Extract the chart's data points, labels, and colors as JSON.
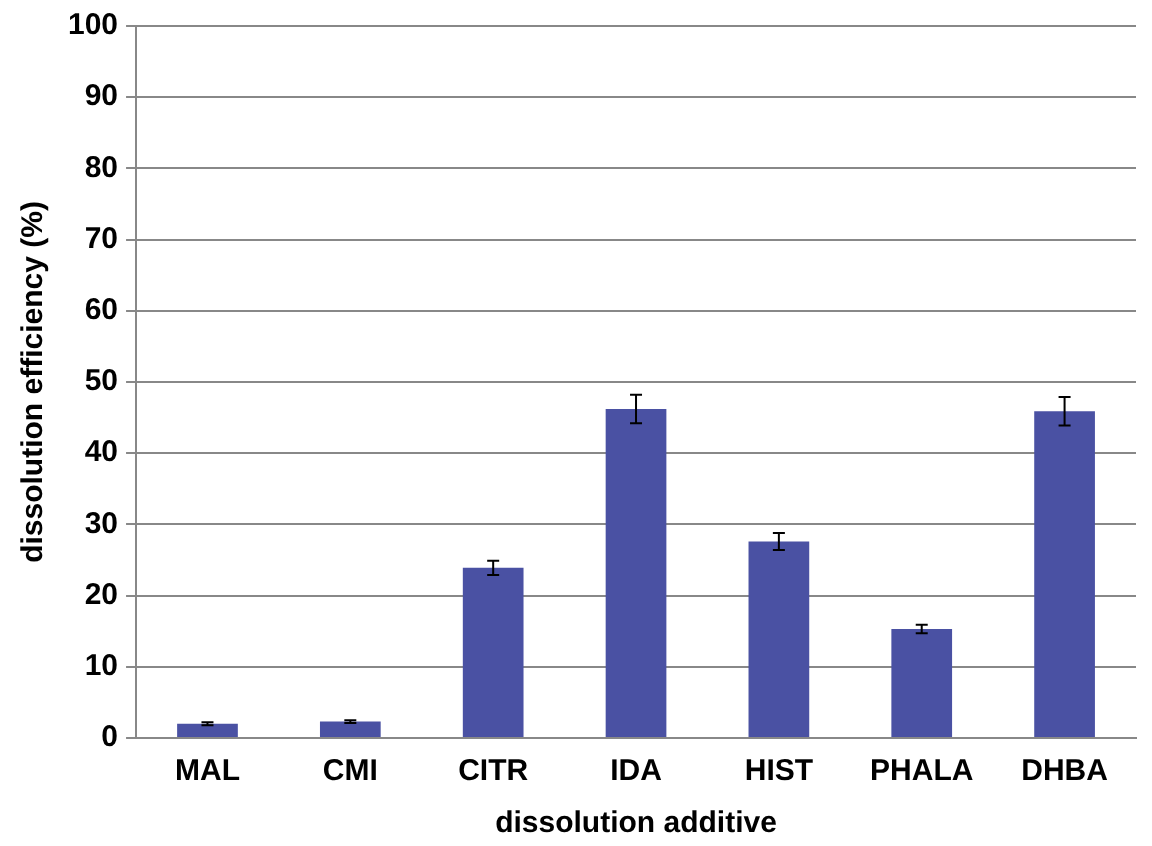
{
  "chart_data": {
    "type": "bar",
    "xlabel": "dissolution additive",
    "ylabel": "dissolution efficiency (%)",
    "categories": [
      "MAL",
      "CMI",
      "CITR",
      "IDA",
      "HIST",
      "PHALA",
      "DHBA"
    ],
    "values": [
      2,
      2.3,
      23.9,
      46.2,
      27.6,
      15.3,
      45.9
    ],
    "errors": [
      0.2,
      0.2,
      1,
      2,
      1.2,
      0.6,
      2
    ],
    "color": "#4a51a3",
    "ylim": [
      0,
      100
    ],
    "yticks": [
      0,
      10,
      20,
      30,
      40,
      50,
      60,
      70,
      80,
      90,
      100
    ],
    "grid": "y",
    "legend": false
  }
}
